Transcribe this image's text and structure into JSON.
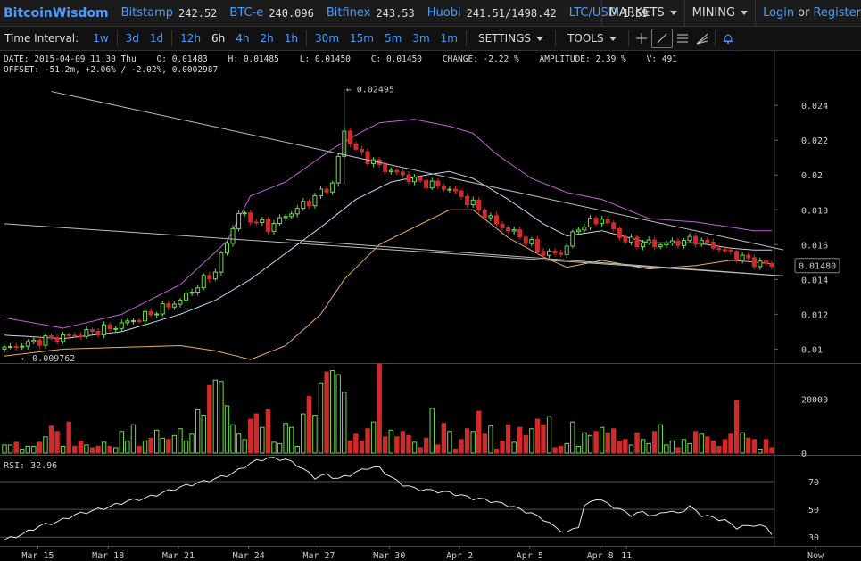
{
  "header": {
    "brand": "BitcoinWisdom",
    "markets": [
      {
        "name": "Bitstamp",
        "price": "242.52"
      },
      {
        "name": "BTC-e",
        "price": "240.096"
      },
      {
        "name": "Bitfinex",
        "price": "243.53"
      },
      {
        "name": "Huobi",
        "price": "241.51/1498.42"
      },
      {
        "name": "LTC/USD",
        "price": "1.59"
      }
    ],
    "menu_markets": "MARKETS",
    "menu_mining": "MINING",
    "login": "Login",
    "or": "or",
    "register": "Register"
  },
  "toolbar": {
    "interval_label": "Time Interval:",
    "intervals": [
      "1w",
      "3d",
      "1d",
      "12h",
      "6h",
      "4h",
      "2h",
      "1h",
      "30m",
      "15m",
      "5m",
      "3m",
      "1m"
    ],
    "active_interval": "6h",
    "settings": "SETTINGS",
    "tools": "TOOLS",
    "tool_icons": [
      "crosshair-icon",
      "line-draw-icon",
      "fib-lines-icon",
      "fan-icon",
      "alert-bell-icon"
    ]
  },
  "info": {
    "line1": "DATE: 2015-04-09 11:30 Thu    O: 0.01483    H: 0.01485    L: 0.01450    C: 0.01450    CHANGE: -2.22 %    AMPLITUDE: 2.39 %    V: 491",
    "line2": "OFFSET: -51.2m, +2.06% / -2.02%, 0.0002987"
  },
  "colors": {
    "up": "#6fdc4f",
    "down": "#d22a2a",
    "upper_band": "#c060d8",
    "lower_band": "#e8b060",
    "ma": "#c8d8e8",
    "trendline": "#bdbdbd"
  },
  "chart_data": {
    "type": "candlestick",
    "price": {
      "ylim": [
        0.0092,
        0.0257
      ],
      "yticks": [
        "0.024",
        "0.022",
        "0.02",
        "0.018",
        "0.016",
        "0.014",
        "0.012",
        "0.01"
      ],
      "ytick_values": [
        0.024,
        0.022,
        0.02,
        0.018,
        0.016,
        0.014,
        0.012,
        0.01
      ],
      "max_annotation": "← 0.02495",
      "max_value": 0.02495,
      "min_annotation": "← 0.009762",
      "min_value": 0.009762,
      "current_label": "0.01480",
      "current_value": 0.0148,
      "anchors": [
        [
          0,
          0.01
        ],
        [
          6,
          0.0105
        ],
        [
          12,
          0.0108
        ],
        [
          18,
          0.0112
        ],
        [
          24,
          0.0119
        ],
        [
          30,
          0.0128
        ],
        [
          36,
          0.0145
        ],
        [
          40,
          0.0178
        ],
        [
          45,
          0.017
        ],
        [
          52,
          0.0185
        ],
        [
          56,
          0.0195
        ],
        [
          58,
          0.0225
        ],
        [
          60,
          0.0214
        ],
        [
          64,
          0.0205
        ],
        [
          70,
          0.0197
        ],
        [
          76,
          0.0192
        ],
        [
          80,
          0.0183
        ],
        [
          84,
          0.0172
        ],
        [
          88,
          0.0165
        ],
        [
          92,
          0.0155
        ],
        [
          95,
          0.0155
        ],
        [
          98,
          0.017
        ],
        [
          102,
          0.0175
        ],
        [
          106,
          0.0162
        ],
        [
          112,
          0.016
        ],
        [
          118,
          0.0163
        ],
        [
          124,
          0.0155
        ],
        [
          128,
          0.015
        ],
        [
          131,
          0.0148
        ]
      ],
      "upper_band": [
        [
          0,
          0.0118
        ],
        [
          10,
          0.0112
        ],
        [
          20,
          0.012
        ],
        [
          30,
          0.0137
        ],
        [
          38,
          0.0162
        ],
        [
          42,
          0.0188
        ],
        [
          48,
          0.0196
        ],
        [
          56,
          0.0215
        ],
        [
          60,
          0.0223
        ],
        [
          64,
          0.023
        ],
        [
          70,
          0.0232
        ],
        [
          76,
          0.0228
        ],
        [
          80,
          0.0224
        ],
        [
          84,
          0.0212
        ],
        [
          90,
          0.0198
        ],
        [
          96,
          0.019
        ],
        [
          102,
          0.0186
        ],
        [
          110,
          0.0175
        ],
        [
          118,
          0.0173
        ],
        [
          124,
          0.017
        ],
        [
          128,
          0.0168
        ],
        [
          131,
          0.0168
        ]
      ],
      "lower_band": [
        [
          0,
          0.0096
        ],
        [
          10,
          0.01
        ],
        [
          20,
          0.0101
        ],
        [
          30,
          0.0102
        ],
        [
          36,
          0.0099
        ],
        [
          42,
          0.0094
        ],
        [
          48,
          0.0102
        ],
        [
          54,
          0.012
        ],
        [
          58,
          0.014
        ],
        [
          64,
          0.016
        ],
        [
          70,
          0.017
        ],
        [
          76,
          0.018
        ],
        [
          80,
          0.018
        ],
        [
          86,
          0.0164
        ],
        [
          92,
          0.0153
        ],
        [
          96,
          0.0147
        ],
        [
          102,
          0.0151
        ],
        [
          110,
          0.0146
        ],
        [
          118,
          0.0148
        ],
        [
          124,
          0.0151
        ],
        [
          128,
          0.015
        ],
        [
          131,
          0.0149
        ]
      ],
      "moving_average": [
        [
          0,
          0.0108
        ],
        [
          10,
          0.0106
        ],
        [
          20,
          0.011
        ],
        [
          30,
          0.012
        ],
        [
          36,
          0.0128
        ],
        [
          42,
          0.014
        ],
        [
          48,
          0.0155
        ],
        [
          54,
          0.017
        ],
        [
          60,
          0.0186
        ],
        [
          66,
          0.0196
        ],
        [
          72,
          0.02
        ],
        [
          76,
          0.0202
        ],
        [
          80,
          0.0198
        ],
        [
          86,
          0.0186
        ],
        [
          92,
          0.0172
        ],
        [
          96,
          0.0165
        ],
        [
          102,
          0.0168
        ],
        [
          110,
          0.0161
        ],
        [
          118,
          0.0161
        ],
        [
          124,
          0.0158
        ],
        [
          128,
          0.0157
        ],
        [
          131,
          0.0157
        ]
      ],
      "trendlines": [
        {
          "from": [
            8,
            0.0248
          ],
          "to": [
            133,
            0.0157
          ]
        },
        {
          "from": [
            0,
            0.0172
          ],
          "to": [
            133,
            0.0142
          ]
        },
        {
          "from": [
            48,
            0.0163
          ],
          "to": [
            133,
            0.0142
          ]
        }
      ]
    },
    "volume": {
      "ylim": [
        0,
        33000
      ],
      "yticks": [
        "20000",
        "0"
      ],
      "ytick_values": [
        20000,
        0
      ],
      "values": [
        3000,
        3000,
        4000,
        1500,
        2500,
        2500,
        4000,
        6000,
        10000,
        8000,
        2500,
        11500,
        2500,
        4500,
        3000,
        2000,
        2500,
        4000,
        2500,
        2000,
        8000,
        4500,
        10500,
        2500,
        4500,
        5500,
        8500,
        5500,
        5000,
        6500,
        9000,
        4500,
        7000,
        16000,
        14000,
        25000,
        27000,
        26500,
        17500,
        10500,
        7000,
        5000,
        12500,
        14500,
        9500,
        16000,
        4000,
        3500,
        11000,
        9500,
        2500,
        14500,
        21000,
        14000,
        26000,
        30000,
        30500,
        29000,
        22500,
        4500,
        7000,
        4500,
        9000,
        11500,
        33000,
        6000,
        8500,
        6000,
        8000,
        6500,
        4000,
        2000,
        5500,
        16500,
        3000,
        11000,
        8000,
        1500,
        5000,
        9000,
        8000,
        15500,
        7000,
        10000,
        1500,
        4500,
        10500,
        4000,
        9500,
        6500,
        9000,
        12500,
        10500,
        13500,
        2000,
        2500,
        3500,
        11500,
        2500,
        7500,
        6500,
        8000,
        9500,
        7500,
        9000,
        4500,
        5000,
        3000,
        7500,
        5000,
        3500,
        8000,
        10500,
        3000,
        4500,
        2000,
        5000,
        3500,
        8000,
        7000,
        6000,
        4500,
        2500,
        5000,
        7000,
        19500,
        7500,
        5500,
        5000,
        1500,
        5000,
        2000
      ]
    },
    "rsi": {
      "label": "RSI: 32.96",
      "ylim": [
        25,
        88
      ],
      "yticks": [
        "70",
        "50",
        "30"
      ],
      "ytick_values": [
        70,
        50,
        30
      ],
      "anchors": [
        [
          0,
          28
        ],
        [
          3,
          32
        ],
        [
          6,
          38
        ],
        [
          9,
          41
        ],
        [
          12,
          46
        ],
        [
          15,
          49
        ],
        [
          18,
          52
        ],
        [
          21,
          56
        ],
        [
          24,
          58
        ],
        [
          27,
          62
        ],
        [
          30,
          66
        ],
        [
          33,
          69
        ],
        [
          36,
          72
        ],
        [
          39,
          76
        ],
        [
          41,
          81
        ],
        [
          43,
          85
        ],
        [
          45,
          87
        ],
        [
          48,
          86
        ],
        [
          50,
          82
        ],
        [
          53,
          73
        ],
        [
          55,
          75
        ],
        [
          57,
          72
        ],
        [
          59,
          75
        ],
        [
          62,
          80
        ],
        [
          64,
          80
        ],
        [
          66,
          73
        ],
        [
          68,
          68
        ],
        [
          70,
          65
        ],
        [
          72,
          64
        ],
        [
          74,
          63
        ],
        [
          76,
          62
        ],
        [
          78,
          60
        ],
        [
          80,
          58
        ],
        [
          82,
          57
        ],
        [
          84,
          55
        ],
        [
          86,
          53
        ],
        [
          88,
          50
        ],
        [
          90,
          47
        ],
        [
          92,
          43
        ],
        [
          94,
          37
        ],
        [
          96,
          33
        ],
        [
          98,
          38
        ],
        [
          99,
          52
        ],
        [
          101,
          58
        ],
        [
          103,
          54
        ],
        [
          105,
          50
        ],
        [
          107,
          46
        ],
        [
          109,
          48
        ],
        [
          111,
          45
        ],
        [
          113,
          49
        ],
        [
          115,
          47
        ],
        [
          117,
          52
        ],
        [
          119,
          46
        ],
        [
          121,
          44
        ],
        [
          123,
          42
        ],
        [
          125,
          37
        ],
        [
          127,
          38
        ],
        [
          128,
          39
        ],
        [
          130,
          37
        ],
        [
          131,
          33
        ]
      ]
    },
    "x_axis": {
      "labels": [
        "Mar 15",
        "Mar 18",
        "Mar 21",
        "Mar 24",
        "Mar 27",
        "Mar 30",
        "Apr 2",
        "Apr 5",
        "Apr 8",
        "11",
        "Now"
      ],
      "label_bars": [
        6,
        18,
        30,
        42,
        54,
        66,
        78,
        90,
        102,
        106.5,
        114
      ]
    }
  }
}
